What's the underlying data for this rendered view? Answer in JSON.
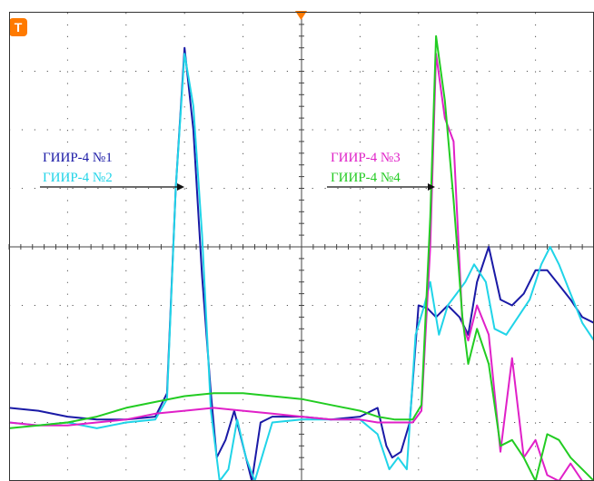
{
  "chart_data": {
    "type": "line",
    "title": "",
    "xlabel": "",
    "ylabel": "",
    "grid": true,
    "xlim": [
      0,
      10
    ],
    "ylim": [
      -4,
      4
    ],
    "trigger_marker": "T",
    "colors": {
      "ch1": "#1a1aa6",
      "ch2": "#20d4e8",
      "ch3": "#e020c8",
      "ch4": "#22cc22",
      "grid": "#555555",
      "trigger": "#ff7a00"
    },
    "annotations": [
      {
        "text": "ГИИР-4 №1",
        "color": "#1a1aa6"
      },
      {
        "text": "ГИИР-4 №2",
        "color": "#20d4e8"
      },
      {
        "text": "ГИИР-4 №3",
        "color": "#e020c8"
      },
      {
        "text": "ГИИР-4 №4",
        "color": "#22cc22"
      }
    ],
    "series": [
      {
        "key": "ch1",
        "x": [
          0,
          0.5,
          1,
          1.5,
          2,
          2.5,
          2.7,
          2.85,
          3.0,
          3.15,
          3.3,
          3.45,
          3.55,
          3.7,
          3.85,
          4.0,
          4.15,
          4.3,
          4.5,
          5,
          5.5,
          6,
          6.3,
          6.45,
          6.55,
          6.7,
          6.85,
          7.0,
          7.15,
          7.3,
          7.5,
          7.7,
          7.85,
          8.0,
          8.2,
          8.4,
          8.6,
          8.8,
          9.0,
          9.2,
          9.4,
          9.6,
          9.8,
          10.0
        ],
        "y": [
          -2.75,
          -2.8,
          -2.9,
          -2.95,
          -2.95,
          -2.9,
          -2.5,
          1.0,
          3.4,
          2.0,
          -0.5,
          -2.5,
          -3.6,
          -3.3,
          -2.8,
          -3.4,
          -4,
          -3.0,
          -2.9,
          -2.9,
          -2.95,
          -2.9,
          -2.75,
          -3.4,
          -3.6,
          -3.5,
          -3.0,
          -1.0,
          -1.05,
          -1.2,
          -1.0,
          -1.2,
          -1.5,
          -0.6,
          0.0,
          -0.9,
          -1.0,
          -0.8,
          -0.4,
          -0.4,
          -0.65,
          -0.9,
          -1.2,
          -1.3
        ]
      },
      {
        "key": "ch2",
        "x": [
          0,
          0.5,
          1,
          1.5,
          2,
          2.5,
          2.7,
          2.85,
          3.0,
          3.15,
          3.3,
          3.45,
          3.6,
          3.75,
          3.9,
          4.05,
          4.2,
          4.35,
          4.5,
          5,
          5.5,
          6,
          6.3,
          6.5,
          6.65,
          6.8,
          6.95,
          7.1,
          7.2,
          7.35,
          7.5,
          7.65,
          7.8,
          7.95,
          8.15,
          8.3,
          8.5,
          8.7,
          8.9,
          9.1,
          9.25,
          9.4,
          9.6,
          9.8,
          10.0
        ],
        "y": [
          -3.0,
          -3.05,
          -3.0,
          -3.1,
          -3.0,
          -2.95,
          -2.6,
          1.0,
          3.3,
          2.4,
          0.2,
          -2.8,
          -4,
          -3.8,
          -2.95,
          -3.6,
          -4,
          -3.5,
          -3.0,
          -2.95,
          -2.95,
          -2.95,
          -3.2,
          -3.8,
          -3.6,
          -3.8,
          -1.5,
          -1.0,
          -0.6,
          -1.5,
          -1.0,
          -0.8,
          -0.6,
          -0.3,
          -0.6,
          -1.4,
          -1.5,
          -1.2,
          -0.9,
          -0.3,
          0.0,
          -0.3,
          -0.8,
          -1.3,
          -1.6
        ]
      },
      {
        "key": "ch3",
        "x": [
          0,
          0.5,
          1,
          1.5,
          2,
          2.5,
          3,
          3.5,
          4,
          4.5,
          5,
          5.5,
          6,
          6.3,
          6.6,
          6.9,
          7.05,
          7.2,
          7.3,
          7.45,
          7.6,
          7.75,
          7.85,
          8.0,
          8.2,
          8.4,
          8.6,
          8.8,
          9.0,
          9.2,
          9.4,
          9.6,
          9.8,
          10.0
        ],
        "y": [
          -3.0,
          -3.05,
          -3.05,
          -3.0,
          -2.95,
          -2.85,
          -2.8,
          -2.75,
          -2.8,
          -2.85,
          -2.9,
          -2.95,
          -2.95,
          -3.0,
          -3.0,
          -3.0,
          -2.8,
          0.0,
          3.3,
          2.2,
          1.8,
          -1.3,
          -1.6,
          -1.0,
          -1.5,
          -3.5,
          -1.9,
          -3.6,
          -3.3,
          -3.9,
          -4,
          -3.7,
          -4,
          -4
        ]
      },
      {
        "key": "ch4",
        "x": [
          0,
          0.5,
          1,
          1.5,
          2,
          2.5,
          3,
          3.5,
          4,
          4.5,
          5,
          5.5,
          6,
          6.3,
          6.6,
          6.9,
          7.05,
          7.2,
          7.3,
          7.45,
          7.6,
          7.75,
          7.85,
          8.0,
          8.2,
          8.4,
          8.6,
          8.8,
          9.0,
          9.2,
          9.4,
          9.6,
          9.8,
          10.0
        ],
        "y": [
          -3.1,
          -3.05,
          -3.0,
          -2.9,
          -2.75,
          -2.65,
          -2.55,
          -2.5,
          -2.5,
          -2.55,
          -2.6,
          -2.7,
          -2.8,
          -2.9,
          -2.95,
          -2.95,
          -2.7,
          0.5,
          3.6,
          2.5,
          0.8,
          -1.2,
          -2.0,
          -1.4,
          -2.0,
          -3.4,
          -3.3,
          -3.6,
          -4,
          -3.2,
          -3.3,
          -3.6,
          -3.8,
          -4
        ]
      }
    ]
  }
}
